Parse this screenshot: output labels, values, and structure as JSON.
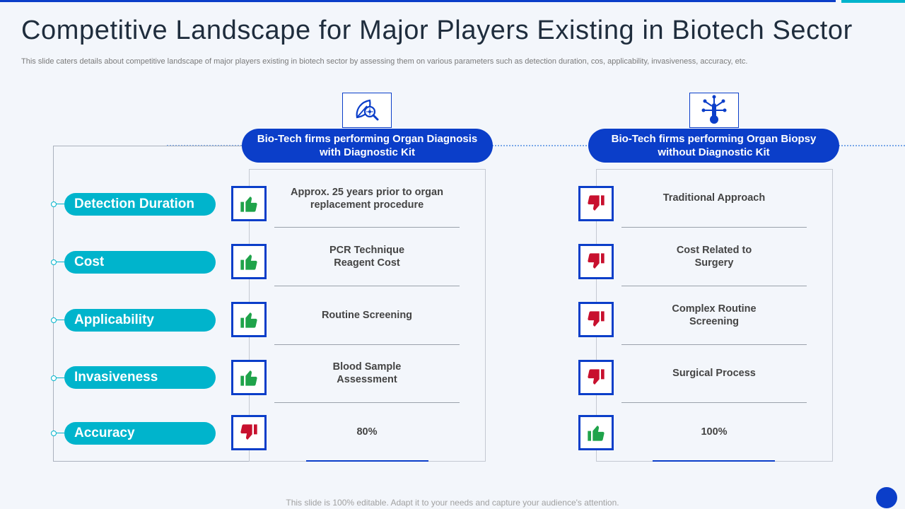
{
  "header": {
    "title": "Competitive Landscape for Major Players Existing in Biotech Sector",
    "subtitle": "This slide caters details about competitive landscape of major players existing in biotech sector by assessing them on various parameters such as detection duration, cos, applicability, invasiveness, accuracy, etc."
  },
  "parameters": [
    {
      "label": "Detection Duration"
    },
    {
      "label": "Cost"
    },
    {
      "label": "Applicability"
    },
    {
      "label": "Invasiveness"
    },
    {
      "label": "Accuracy"
    }
  ],
  "columns": [
    {
      "heading_line1": "Bio-Tech firms performing Organ Diagnosis",
      "heading_line2": "with Diagnostic Kit",
      "icon": "leaf-magnifier-icon",
      "rows": [
        {
          "line1": "Approx. 25 years prior to organ",
          "line2": "replacement procedure",
          "rating": "thumbs-up"
        },
        {
          "line1": "PCR Technique",
          "line2": "Reagent Cost",
          "rating": "thumbs-up"
        },
        {
          "line1": "Routine Screening",
          "line2": "",
          "rating": "thumbs-up"
        },
        {
          "line1": "Blood Sample",
          "line2": "Assessment",
          "rating": "thumbs-up"
        },
        {
          "line1": "80%",
          "line2": "",
          "rating": "thumbs-down"
        }
      ]
    },
    {
      "heading_line1": "Bio-Tech firms performing Organ Biopsy",
      "heading_line2": "without Diagnostic Kit",
      "icon": "thermometer-network-icon",
      "rows": [
        {
          "line1": "Traditional Approach",
          "line2": "",
          "rating": "thumbs-down"
        },
        {
          "line1": "Cost Related to",
          "line2": "Surgery",
          "rating": "thumbs-down"
        },
        {
          "line1": "Complex Routine",
          "line2": "Screening",
          "rating": "thumbs-down"
        },
        {
          "line1": "Surgical Process",
          "line2": "",
          "rating": "thumbs-down"
        },
        {
          "line1": "100%",
          "line2": "",
          "rating": "thumbs-up"
        }
      ]
    }
  ],
  "footer": {
    "note": "This slide is 100% editable. Adapt it to your needs and capture your audience's attention."
  },
  "colors": {
    "brand_blue": "#0b3ec9",
    "accent_cyan": "#00b4cc",
    "thumb_up_green": "#1fa34a",
    "thumb_down_red": "#c8102e"
  }
}
